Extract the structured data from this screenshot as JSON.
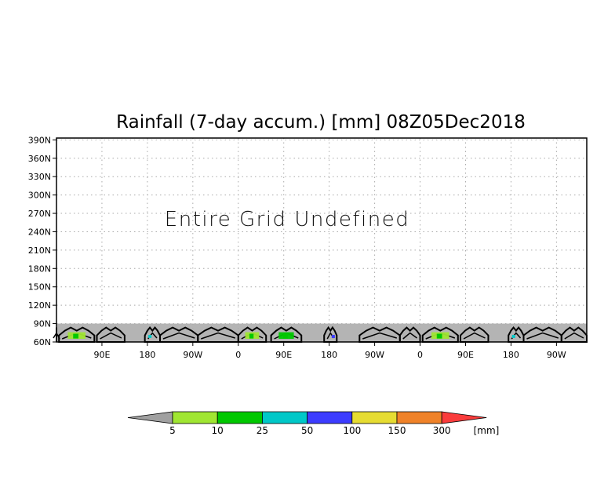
{
  "chart_data": {
    "type": "heatmap",
    "title": "Rainfall (7-day accum.) [mm] 08Z05Dec2018",
    "annotation": "Entire Grid Undefined",
    "y_ticks": [
      "60N",
      "90N",
      "120N",
      "150N",
      "180N",
      "210N",
      "240N",
      "270N",
      "300N",
      "330N",
      "360N",
      "390N"
    ],
    "y_tick_values": [
      60,
      90,
      120,
      150,
      180,
      210,
      240,
      270,
      300,
      330,
      360,
      390
    ],
    "ylim": [
      60,
      393
    ],
    "x_ticks": [
      "90E",
      "180",
      "90W",
      "0",
      "90E",
      "180",
      "90W",
      "0",
      "90E",
      "180",
      "90W"
    ],
    "x_tick_values": [
      90,
      180,
      270,
      360,
      450,
      540,
      630,
      720,
      810,
      900,
      990
    ],
    "xlim": [
      0,
      1050
    ],
    "grid": true,
    "undefined_band": {
      "lat_from": 60,
      "lat_to": 90,
      "color": "#b4b4b4"
    },
    "colorbar": {
      "levels": [
        "5",
        "10",
        "25",
        "50",
        "100",
        "150",
        "300"
      ],
      "unit": "[mm]",
      "colors": [
        "#a0a0a0",
        "#a0e632",
        "#00c800",
        "#00c8c8",
        "#3c3cff",
        "#e6dc32",
        "#f08228",
        "#fa3c3c"
      ]
    }
  },
  "colors": {
    "frame": "#000000",
    "grid": "#aaaaaa",
    "land_outline": "#000000",
    "rain_light": "#a0e632",
    "rain_medium": "#00c800",
    "rain_heavy": "#00c8c8",
    "rain_extreme": "#3c3cff"
  }
}
